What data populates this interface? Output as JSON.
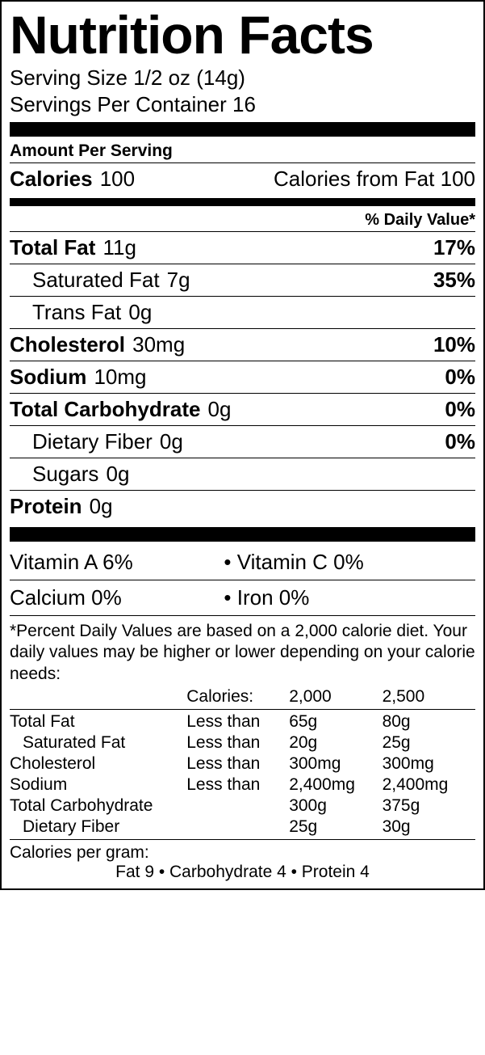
{
  "title": "Nutrition Facts",
  "serving_size_label": "Serving Size",
  "serving_size_value": "1/2 oz (14g)",
  "servings_per_label": "Servings Per Container",
  "servings_per_value": "16",
  "amount_per": "Amount Per Serving",
  "calories_label": "Calories",
  "calories_value": "100",
  "calories_fat_label": "Calories from Fat",
  "calories_fat_value": "100",
  "dv_header": "% Daily Value*",
  "nutrients": {
    "total_fat": {
      "label": "Total Fat",
      "amount": "11g",
      "dv": "17%"
    },
    "sat_fat": {
      "label": "Saturated Fat",
      "amount": "7g",
      "dv": "35%"
    },
    "trans_fat": {
      "label": "Trans Fat",
      "amount": "0g",
      "dv": ""
    },
    "cholesterol": {
      "label": "Cholesterol",
      "amount": "30mg",
      "dv": "10%"
    },
    "sodium": {
      "label": "Sodium",
      "amount": "10mg",
      "dv": "0%"
    },
    "total_carb": {
      "label": "Total Carbohydrate",
      "amount": "0g",
      "dv": "0%"
    },
    "fiber": {
      "label": "Dietary Fiber",
      "amount": "0g",
      "dv": "0%"
    },
    "sugars": {
      "label": "Sugars",
      "amount": "0g",
      "dv": ""
    },
    "protein": {
      "label": "Protein",
      "amount": "0g",
      "dv": ""
    }
  },
  "vitamins": {
    "a": "Vitamin A 6%",
    "c": "Vitamin C 0%",
    "calcium": "Calcium 0%",
    "iron": "Iron 0%"
  },
  "footnote": "*Percent Daily Values are based on a 2,000 calorie diet. Your daily values may be higher or lower depending on your calorie needs:",
  "ref_header": {
    "c1": "",
    "c2": "Calories:",
    "c3": "2,000",
    "c4": "2,500"
  },
  "ref": [
    {
      "name": "Total Fat",
      "op": "Less than",
      "v1": "65g",
      "v2": "80g",
      "indent": false
    },
    {
      "name": "Saturated Fat",
      "op": "Less than",
      "v1": "20g",
      "v2": "25g",
      "indent": true
    },
    {
      "name": "Cholesterol",
      "op": "Less than",
      "v1": "300mg",
      "v2": "300mg",
      "indent": false
    },
    {
      "name": "Sodium",
      "op": "Less than",
      "v1": "2,400mg",
      "v2": "2,400mg",
      "indent": false
    },
    {
      "name": "Total Carbohydrate",
      "op": "",
      "v1": "300g",
      "v2": "375g",
      "indent": false
    },
    {
      "name": "Dietary Fiber",
      "op": "",
      "v1": "25g",
      "v2": "30g",
      "indent": true
    }
  ],
  "cals_per_gram_label": "Calories per gram:",
  "cals_per_gram": "Fat 9   •   Carbohydrate 4   •   Protein 4"
}
